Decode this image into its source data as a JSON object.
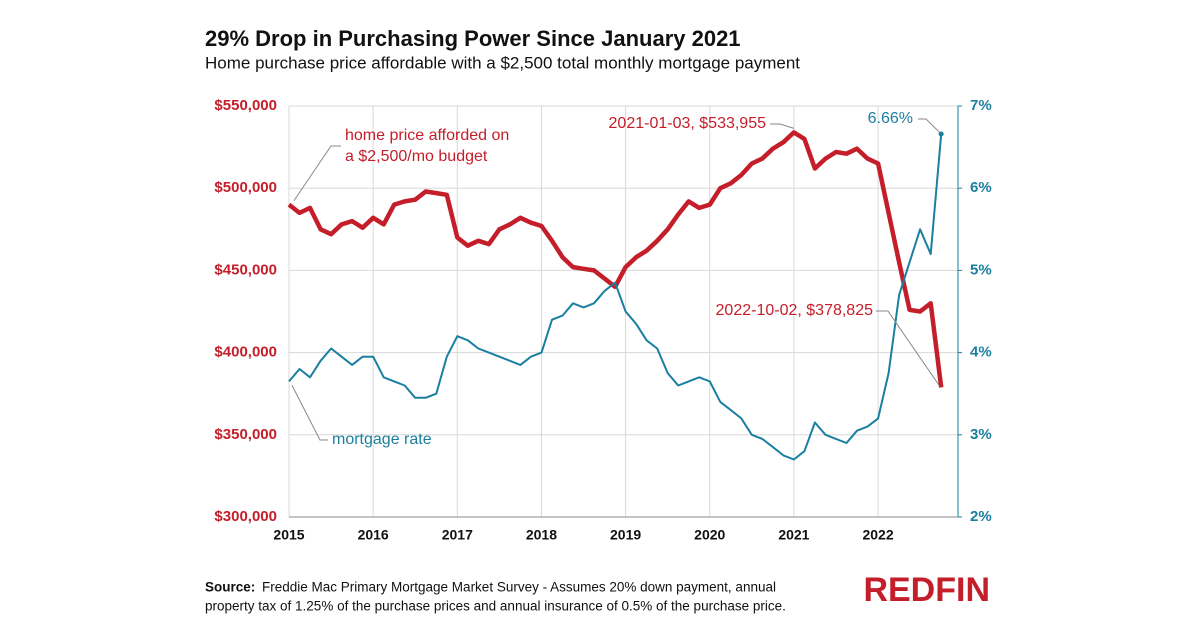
{
  "chart_data": {
    "type": "line",
    "title": "29% Drop in Purchasing Power Since January 2021",
    "subtitle": "Home purchase price affordable with a $2,500 total monthly mortgage payment",
    "x": [
      2015,
      2015.125,
      2015.25,
      2015.375,
      2015.5,
      2015.625,
      2015.75,
      2015.875,
      2016,
      2016.125,
      2016.25,
      2016.375,
      2016.5,
      2016.625,
      2016.75,
      2016.875,
      2017,
      2017.125,
      2017.25,
      2017.375,
      2017.5,
      2017.625,
      2017.75,
      2017.875,
      2018,
      2018.125,
      2018.25,
      2018.375,
      2018.5,
      2018.625,
      2018.75,
      2018.875,
      2019,
      2019.125,
      2019.25,
      2019.375,
      2019.5,
      2019.625,
      2019.75,
      2019.875,
      2020,
      2020.125,
      2020.25,
      2020.375,
      2020.5,
      2020.625,
      2020.75,
      2020.875,
      2021,
      2021.125,
      2021.25,
      2021.375,
      2021.5,
      2021.625,
      2021.75,
      2021.875,
      2022,
      2022.125,
      2022.25,
      2022.375,
      2022.5,
      2022.625,
      2022.75
    ],
    "series": [
      {
        "name": "home price",
        "color": "#c41e2a",
        "values": [
          490000,
          485000,
          488000,
          475000,
          472000,
          478000,
          480000,
          476000,
          482000,
          478000,
          490000,
          492000,
          493000,
          498000,
          497000,
          496000,
          470000,
          465000,
          468000,
          466000,
          475000,
          478000,
          482000,
          479000,
          477000,
          468000,
          458000,
          452000,
          451000,
          450000,
          445000,
          440000,
          452000,
          458000,
          462000,
          468000,
          475000,
          484000,
          492000,
          488000,
          490000,
          500000,
          503000,
          508000,
          515000,
          518000,
          524000,
          528000,
          533955,
          530000,
          512000,
          518000,
          522000,
          521000,
          524000,
          518000,
          515000,
          485000,
          455000,
          426000,
          425000,
          430000,
          378825
        ]
      },
      {
        "name": "mortgage rate",
        "color": "#1a7fa0",
        "axis": "y2",
        "values": [
          3.65,
          3.8,
          3.7,
          3.9,
          4.05,
          3.95,
          3.85,
          3.95,
          3.95,
          3.7,
          3.65,
          3.6,
          3.45,
          3.45,
          3.5,
          3.95,
          4.2,
          4.15,
          4.05,
          4.0,
          3.95,
          3.9,
          3.85,
          3.95,
          4.0,
          4.4,
          4.45,
          4.6,
          4.55,
          4.6,
          4.75,
          4.85,
          4.5,
          4.35,
          4.15,
          4.05,
          3.75,
          3.6,
          3.65,
          3.7,
          3.65,
          3.4,
          3.3,
          3.2,
          3.0,
          2.95,
          2.85,
          2.75,
          2.7,
          2.8,
          3.15,
          3.0,
          2.95,
          2.9,
          3.05,
          3.1,
          3.2,
          3.75,
          4.7,
          5.1,
          5.5,
          5.2,
          6.66
        ]
      }
    ],
    "xlim": [
      2015,
      2022.95
    ],
    "xticks": [
      2015,
      2016,
      2017,
      2018,
      2019,
      2020,
      2021,
      2022
    ],
    "ylim": [
      300000,
      550000
    ],
    "yticks": [
      {
        "value": 300000,
        "label": "$300,000"
      },
      {
        "value": 350000,
        "label": "$350,000"
      },
      {
        "value": 400000,
        "label": "$400,000"
      },
      {
        "value": 450000,
        "label": "$450,000"
      },
      {
        "value": 500000,
        "label": "$500,000"
      },
      {
        "value": 550000,
        "label": "$550,000"
      }
    ],
    "y2lim": [
      2,
      7
    ],
    "y2ticks": [
      {
        "value": 2,
        "label": "2%"
      },
      {
        "value": 3,
        "label": "3%"
      },
      {
        "value": 4,
        "label": "4%"
      },
      {
        "value": 5,
        "label": "5%"
      },
      {
        "value": 6,
        "label": "6%"
      },
      {
        "value": 7,
        "label": "7%"
      }
    ],
    "grid": true,
    "annotations": [
      "home price afforded on",
      "a $2,500/mo budget",
      "mortgage rate",
      "2021-01-03, $533,955",
      "2022-10-02, $378,825",
      "6.66%"
    ],
    "source_label": "Source:",
    "source": [
      "Freddie Mac Primary Mortgage Market Survey - Assumes 20% down payment, annual",
      "property tax of 1.25% of the purchase prices and annual insurance of 0.5% of the purchase price."
    ],
    "logo": "REDFIN"
  }
}
